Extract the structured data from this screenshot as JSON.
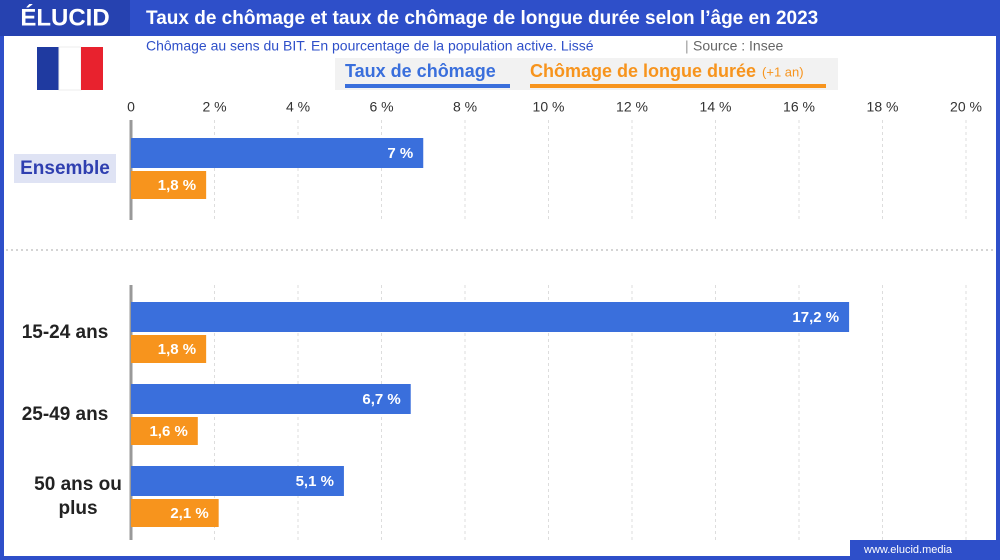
{
  "header": {
    "logo": "ÉLUCID",
    "title": "Taux de chômage et taux de chômage de longue durée selon l’âge en 2023",
    "subtitle": "Chômage au sens du BIT. En pourcentage de la population active. Lissé",
    "source": "Source : Insee",
    "footer": "www.elucid.media"
  },
  "chart_data": {
    "type": "barh",
    "categories": [
      "Ensemble",
      "15-24 ans",
      "25-49 ans",
      "50 ans ou plus"
    ],
    "series": [
      {
        "name": "Taux de chômage",
        "color": "#3a6fdc",
        "values": [
          7,
          17.2,
          6.7,
          5.1
        ],
        "value_labels": [
          "7 %",
          "17,2 %",
          "6,7 %",
          "5,1 %"
        ]
      },
      {
        "name": "Chômage de longue durée",
        "legend_note": "(+1 an)",
        "color": "#f7941d",
        "values": [
          1.8,
          1.8,
          1.6,
          2.1
        ],
        "value_labels": [
          "1,8 %",
          "1,8 %",
          "1,6 %",
          "2,1 %"
        ]
      }
    ],
    "xlim": [
      0,
      20
    ],
    "xticks": [
      0,
      {
        "value": 2,
        "label": "2 %"
      },
      {
        "value": 4,
        "label": "4 %"
      },
      {
        "value": 6,
        "label": "6 %"
      },
      {
        "value": 8,
        "label": "8 %"
      },
      {
        "value": 10,
        "label": "10 %"
      },
      {
        "value": 12,
        "label": "12 %"
      },
      {
        "value": 14,
        "label": "14 %"
      },
      {
        "value": 16,
        "label": "16 %"
      },
      {
        "value": 18,
        "label": "18 %"
      },
      {
        "value": 20,
        "label": "20 %"
      }
    ],
    "grid": true
  }
}
